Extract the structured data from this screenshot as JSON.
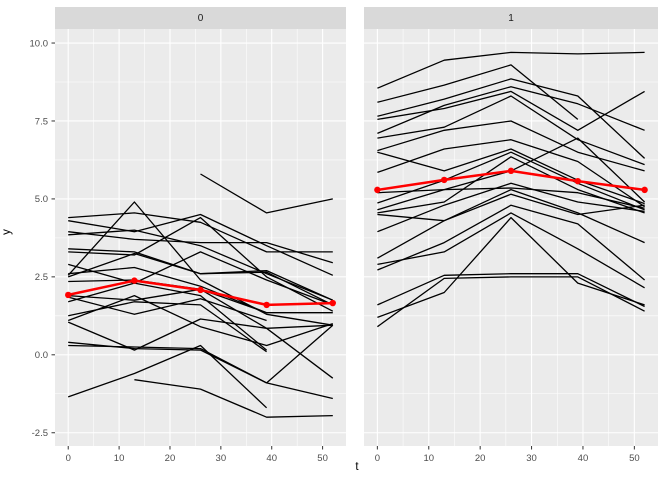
{
  "chart_data": {
    "type": "line",
    "description": "Faceted spaghetti plot of individual trajectories (black) with mean trajectory (red points + line) per group",
    "xlabel": "t",
    "ylabel": "y",
    "x": [
      0,
      13,
      26,
      39,
      52
    ],
    "x_ticks": [
      0,
      10,
      20,
      30,
      40,
      50
    ],
    "x_tick_labels": [
      "0",
      "10",
      "20",
      "30",
      "40",
      "50"
    ],
    "y_ticks": [
      -2.5,
      0,
      2.5,
      5,
      7.5,
      10
    ],
    "y_tick_labels": [
      "-2.5",
      "0.0",
      "2.5",
      "5.0",
      "7.5",
      "10.0"
    ],
    "x_minor": [
      5,
      15,
      25,
      35,
      45
    ],
    "y_minor": [
      -1.25,
      1.25,
      3.75,
      6.25,
      8.75
    ],
    "xlim": [
      -2.6,
      54.6
    ],
    "ylim": [
      -2.925,
      10.45
    ],
    "grid": true,
    "legend": "none",
    "facets": [
      {
        "label": "0",
        "mean": [
          1.92,
          2.38,
          2.08,
          1.6,
          1.66
        ],
        "lines": [
          [
            4.4,
            4.55,
            4.25,
            3.3,
            3.3
          ],
          [
            4.3,
            3.95,
            4.5,
            3.5,
            2.55
          ],
          [
            3.95,
            3.7,
            3.6,
            3.6,
            2.95
          ],
          [
            3.85,
            4.0,
            3.5,
            2.6,
            1.75
          ],
          [
            2.55,
            4.9,
            2.4,
            1.3,
            0.95
          ],
          [
            3.3,
            3.2,
            4.4,
            2.5,
            1.4
          ],
          [
            2.9,
            2.3,
            3.3,
            2.4,
            1.6
          ],
          [
            2.5,
            3.25,
            2.6,
            2.7,
            1.75
          ],
          [
            2.35,
            2.4,
            2.1,
            1.35,
            null
          ],
          [
            1.85,
            1.3,
            1.8,
            1.1,
            null
          ],
          [
            1.7,
            2.3,
            1.9,
            0.15,
            null
          ],
          [
            1.25,
            1.7,
            1.6,
            0.1,
            null
          ],
          [
            1.05,
            0.15,
            1.15,
            0.85,
            -0.75
          ],
          [
            0.4,
            0.2,
            0.15,
            -0.9,
            -1.4
          ],
          [
            -1.35,
            -0.6,
            0.3,
            -1.7,
            null
          ],
          [
            null,
            -0.8,
            -1.1,
            -2.0,
            -1.95
          ],
          [
            null,
            null,
            5.8,
            4.55,
            5.0
          ],
          [
            2.6,
            2.8,
            2.2,
            1.35,
            1.35
          ],
          [
            1.9,
            1.75,
            2.1,
            0.85,
            0.95
          ],
          [
            3.4,
            3.3,
            2.6,
            2.65,
            1.6
          ],
          [
            1.1,
            1.9,
            0.9,
            0.3,
            1.0
          ],
          [
            0.3,
            0.25,
            0.2,
            -0.9,
            0.95
          ]
        ]
      },
      {
        "label": "1",
        "mean": [
          5.29,
          5.61,
          5.9,
          5.57,
          5.29
        ],
        "lines": [
          [
            8.55,
            9.45,
            9.7,
            9.65,
            9.7
          ],
          [
            8.1,
            8.65,
            9.3,
            7.55,
            null
          ],
          [
            7.65,
            8.2,
            8.85,
            8.3,
            6.3
          ],
          [
            7.55,
            7.9,
            8.45,
            7.2,
            8.45
          ],
          [
            7.1,
            8.0,
            8.6,
            8.05,
            7.2
          ],
          [
            6.95,
            7.3,
            8.3,
            6.9,
            6.1
          ],
          [
            6.55,
            7.2,
            7.5,
            6.5,
            5.9
          ],
          [
            6.5,
            5.9,
            6.6,
            5.6,
            4.85
          ],
          [
            5.85,
            6.6,
            6.9,
            6.2,
            4.75
          ],
          [
            5.2,
            5.3,
            5.35,
            5.2,
            4.7
          ],
          [
            4.87,
            5.6,
            6.5,
            5.5,
            4.65
          ],
          [
            4.65,
            5.3,
            5.9,
            6.95,
            4.9
          ],
          [
            4.55,
            4.9,
            6.35,
            5.3,
            4.55
          ],
          [
            4.5,
            4.3,
            5.15,
            4.5,
            4.8
          ],
          [
            3.95,
            4.8,
            5.5,
            4.9,
            4.6
          ],
          [
            3.1,
            4.3,
            5.3,
            4.55,
            3.6
          ],
          [
            2.72,
            3.6,
            4.8,
            4.2,
            2.4
          ],
          [
            2.9,
            3.3,
            4.55,
            3.4,
            2.15
          ],
          [
            1.6,
            2.55,
            2.6,
            2.6,
            1.55
          ],
          [
            0.9,
            2.45,
            2.5,
            2.5,
            1.4
          ],
          [
            1.2,
            2.0,
            4.4,
            2.3,
            1.6
          ]
        ]
      }
    ]
  },
  "colors": {
    "background": "#FFFFFF",
    "panel_bg": "#EBEBEB",
    "strip_bg": "#D9D9D9",
    "grid": "#FFFFFF",
    "subject_line": "#000000",
    "mean_line": "#FF0000",
    "tick_text": "#4D4D4D",
    "tick_mark": "#333333",
    "axis_title": "#000000"
  }
}
